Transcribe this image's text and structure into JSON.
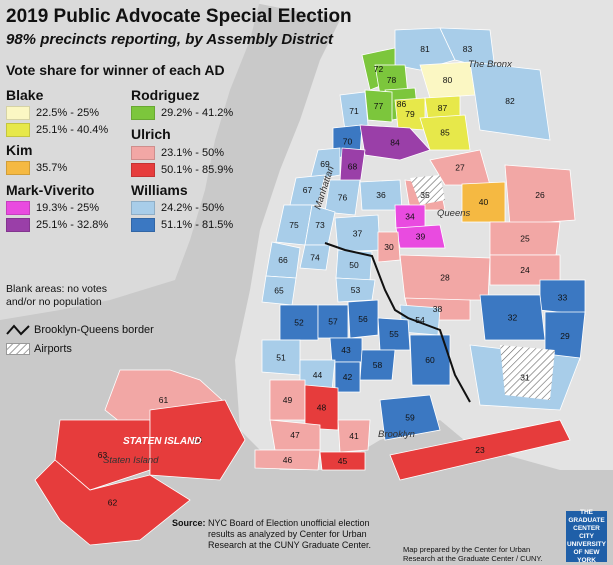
{
  "title": "2019 Public Advocate Special Election",
  "subtitle": "98% precincts reporting, by Assembly District",
  "legend": {
    "heading": "Vote share for winner of each AD",
    "groups": [
      {
        "candidate": "Blake",
        "items": [
          {
            "range": "22.5% - 25%",
            "color": "#fbf7c3"
          },
          {
            "range": "25.1% - 40.4%",
            "color": "#e7e84a"
          }
        ]
      },
      {
        "candidate": "Rodriguez",
        "items": [
          {
            "range": "29.2% - 41.2%",
            "color": "#7cc63c"
          }
        ]
      },
      {
        "candidate": "Kim",
        "items": [
          {
            "range": "35.7%",
            "color": "#f5b942"
          }
        ]
      },
      {
        "candidate": "Ulrich",
        "items": [
          {
            "range": "23.1% - 50%",
            "color": "#f2a7a5"
          },
          {
            "range": "50.1% - 85.9%",
            "color": "#e63c3c"
          }
        ]
      },
      {
        "candidate": "Mark-Viverito",
        "items": [
          {
            "range": "19.3% - 25%",
            "color": "#e94be0"
          },
          {
            "range": "25.1% - 32.8%",
            "color": "#9a3fa8"
          }
        ]
      },
      {
        "candidate": "Williams",
        "items": [
          {
            "range": "24.2% - 50%",
            "color": "#a8cde9"
          },
          {
            "range": "51.1% - 81.5%",
            "color": "#3b78c2"
          }
        ]
      }
    ],
    "blank_note": "Blank areas: no votes and/or no population",
    "border_label": "Brooklyn-Queens border",
    "airports_label": "Airports"
  },
  "places": {
    "bronx": "The Bronx",
    "manhattan": "Manhattan",
    "queens": "Queens",
    "brooklyn": "Brooklyn",
    "staten_island_big": "STATEN ISLAND",
    "staten_island": "Staten Island"
  },
  "districts": [
    {
      "ad": "81",
      "fill": "#a8cde9"
    },
    {
      "ad": "83",
      "fill": "#a8cde9"
    },
    {
      "ad": "72",
      "fill": "#7cc63c"
    },
    {
      "ad": "78",
      "fill": "#7cc63c"
    },
    {
      "ad": "86",
      "fill": "#7cc63c"
    },
    {
      "ad": "77",
      "fill": "#7cc63c"
    },
    {
      "ad": "80",
      "fill": "#fbf7c3"
    },
    {
      "ad": "82",
      "fill": "#a8cde9"
    },
    {
      "ad": "71",
      "fill": "#a8cde9"
    },
    {
      "ad": "79",
      "fill": "#e7e84a"
    },
    {
      "ad": "87",
      "fill": "#e7e84a"
    },
    {
      "ad": "85",
      "fill": "#e7e84a"
    },
    {
      "ad": "70",
      "fill": "#3b78c2"
    },
    {
      "ad": "84",
      "fill": "#9a3fa8"
    },
    {
      "ad": "69",
      "fill": "#a8cde9"
    },
    {
      "ad": "68",
      "fill": "#9a3fa8"
    },
    {
      "ad": "27",
      "fill": "#f2a7a5"
    },
    {
      "ad": "67",
      "fill": "#a8cde9"
    },
    {
      "ad": "76",
      "fill": "#a8cde9"
    },
    {
      "ad": "36",
      "fill": "#a8cde9"
    },
    {
      "ad": "35",
      "fill": "#f2a7a5"
    },
    {
      "ad": "40",
      "fill": "#f5b942"
    },
    {
      "ad": "26",
      "fill": "#f2a7a5"
    },
    {
      "ad": "75",
      "fill": "#a8cde9"
    },
    {
      "ad": "34",
      "fill": "#e94be0"
    },
    {
      "ad": "39",
      "fill": "#e94be0"
    },
    {
      "ad": "73",
      "fill": "#a8cde9"
    },
    {
      "ad": "37",
      "fill": "#a8cde9"
    },
    {
      "ad": "30",
      "fill": "#f2a7a5"
    },
    {
      "ad": "25",
      "fill": "#f2a7a5"
    },
    {
      "ad": "74",
      "fill": "#a8cde9"
    },
    {
      "ad": "66",
      "fill": "#a8cde9"
    },
    {
      "ad": "50",
      "fill": "#a8cde9"
    },
    {
      "ad": "24",
      "fill": "#f2a7a5"
    },
    {
      "ad": "28",
      "fill": "#f2a7a5"
    },
    {
      "ad": "53",
      "fill": "#a8cde9"
    },
    {
      "ad": "65",
      "fill": "#a8cde9"
    },
    {
      "ad": "33",
      "fill": "#3b78c2"
    },
    {
      "ad": "38",
      "fill": "#f2a7a5"
    },
    {
      "ad": "32",
      "fill": "#3b78c2"
    },
    {
      "ad": "52",
      "fill": "#3b78c2"
    },
    {
      "ad": "57",
      "fill": "#3b78c2"
    },
    {
      "ad": "56",
      "fill": "#3b78c2"
    },
    {
      "ad": "54",
      "fill": "#a8cde9"
    },
    {
      "ad": "29",
      "fill": "#3b78c2"
    },
    {
      "ad": "55",
      "fill": "#3b78c2"
    },
    {
      "ad": "43",
      "fill": "#3b78c2"
    },
    {
      "ad": "60",
      "fill": "#3b78c2"
    },
    {
      "ad": "51",
      "fill": "#a8cde9"
    },
    {
      "ad": "58",
      "fill": "#3b78c2"
    },
    {
      "ad": "44",
      "fill": "#a8cde9"
    },
    {
      "ad": "42",
      "fill": "#3b78c2"
    },
    {
      "ad": "31",
      "fill": "#a8cde9"
    },
    {
      "ad": "61",
      "fill": "#f2a7a5"
    },
    {
      "ad": "49",
      "fill": "#f2a7a5"
    },
    {
      "ad": "48",
      "fill": "#e63c3c"
    },
    {
      "ad": "59",
      "fill": "#3b78c2"
    },
    {
      "ad": "63",
      "fill": "#e63c3c"
    },
    {
      "ad": "47",
      "fill": "#f2a7a5"
    },
    {
      "ad": "41",
      "fill": "#f2a7a5"
    },
    {
      "ad": "46",
      "fill": "#f2a7a5"
    },
    {
      "ad": "45",
      "fill": "#e63c3c"
    },
    {
      "ad": "64",
      "fill": "#e63c3c"
    },
    {
      "ad": "23",
      "fill": "#e63c3c"
    },
    {
      "ad": "62",
      "fill": "#e63c3c"
    }
  ],
  "source": {
    "label": "Source:",
    "text": "NYC Board of Election unofficial election results as analyzed by Center for Urban Research at the CUNY Graduate Center."
  },
  "credit": "Map prepared by the Center for Urban Research at the Graduate Center / CUNY.",
  "logo_text": "THE GRADUATE CENTER CITY UNIVERSITY OF NEW YORK"
}
